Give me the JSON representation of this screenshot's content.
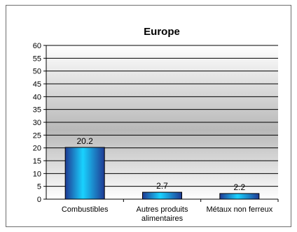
{
  "chart_data": {
    "type": "bar",
    "title": "Europe",
    "categories": [
      [
        "Combustibles"
      ],
      [
        "Autres produits",
        "alimentaires"
      ],
      [
        "Métaux non ferreux"
      ]
    ],
    "values": [
      20.2,
      2.7,
      2.2
    ],
    "value_labels": [
      "20.2",
      "2.7",
      "2.2"
    ],
    "ylim": [
      0,
      60
    ],
    "yticks": [
      0,
      5,
      10,
      15,
      20,
      25,
      30,
      35,
      40,
      45,
      50,
      55,
      60
    ],
    "grid": true,
    "legend": "none",
    "colors": {
      "bar_center": "#19d2ff",
      "bar_edge": "#1f3a93",
      "plot_top": "#ffffff",
      "plot_mid": "#b8b8b8"
    }
  }
}
